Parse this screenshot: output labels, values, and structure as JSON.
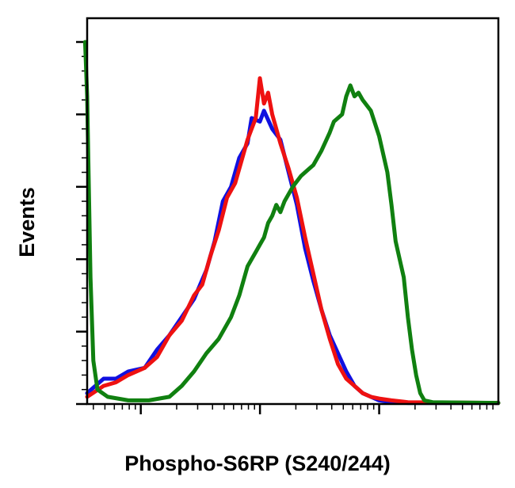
{
  "chart_data": {
    "type": "line",
    "title": "",
    "xlabel": "Phospho-S6RP (S240/244)",
    "ylabel": "Events",
    "xscale": "log",
    "xlim": [
      0,
      100
    ],
    "ylim": [
      0,
      100
    ],
    "grid": false,
    "legend": "none",
    "series": [
      {
        "color": "#1010e0",
        "points": [
          [
            0,
            3
          ],
          [
            4,
            7
          ],
          [
            7,
            7
          ],
          [
            10,
            9
          ],
          [
            14,
            10
          ],
          [
            17,
            15
          ],
          [
            20,
            19
          ],
          [
            23,
            24
          ],
          [
            26,
            29
          ],
          [
            29,
            37
          ],
          [
            31,
            45
          ],
          [
            33,
            56
          ],
          [
            35,
            60
          ],
          [
            37,
            68
          ],
          [
            39,
            72
          ],
          [
            40,
            79
          ],
          [
            42,
            78
          ],
          [
            43,
            81
          ],
          [
            45,
            76
          ],
          [
            47,
            73
          ],
          [
            49,
            64
          ],
          [
            51,
            55
          ],
          [
            53,
            43
          ],
          [
            55,
            34
          ],
          [
            57,
            26
          ],
          [
            59,
            19
          ],
          [
            61,
            14
          ],
          [
            63,
            9
          ],
          [
            65,
            5
          ],
          [
            67,
            3
          ],
          [
            69,
            2
          ],
          [
            71,
            1
          ],
          [
            74,
            0.5
          ],
          [
            78,
            0.3
          ],
          [
            100,
            0.3
          ]
        ]
      },
      {
        "color": "#ee1111",
        "points": [
          [
            0,
            2
          ],
          [
            4,
            5
          ],
          [
            7,
            6
          ],
          [
            10,
            8
          ],
          [
            14,
            10
          ],
          [
            17,
            13
          ],
          [
            20,
            19
          ],
          [
            23,
            23
          ],
          [
            26,
            30
          ],
          [
            28,
            33
          ],
          [
            30,
            41
          ],
          [
            32,
            48
          ],
          [
            34,
            57
          ],
          [
            36,
            61
          ],
          [
            38,
            69
          ],
          [
            39,
            73
          ],
          [
            41,
            79
          ],
          [
            42,
            90
          ],
          [
            43,
            83
          ],
          [
            44,
            86
          ],
          [
            45,
            80
          ],
          [
            47,
            72
          ],
          [
            49,
            65
          ],
          [
            51,
            57
          ],
          [
            53,
            46
          ],
          [
            55,
            36
          ],
          [
            57,
            26
          ],
          [
            59,
            18
          ],
          [
            61,
            11
          ],
          [
            63,
            7
          ],
          [
            65,
            5
          ],
          [
            67,
            3
          ],
          [
            69,
            2
          ],
          [
            71,
            1.5
          ],
          [
            74,
            1
          ],
          [
            78,
            0.5
          ],
          [
            100,
            0.3
          ]
        ]
      },
      {
        "color": "#108010",
        "points": [
          [
            -0.5,
            100
          ],
          [
            0,
            85
          ],
          [
            0.8,
            35
          ],
          [
            1.5,
            12
          ],
          [
            2.5,
            4
          ],
          [
            5,
            2
          ],
          [
            10,
            1
          ],
          [
            15,
            1
          ],
          [
            20,
            2
          ],
          [
            23,
            5
          ],
          [
            26,
            9
          ],
          [
            29,
            14
          ],
          [
            32,
            18
          ],
          [
            35,
            24
          ],
          [
            37,
            30
          ],
          [
            38,
            34
          ],
          [
            39,
            38
          ],
          [
            41,
            42
          ],
          [
            42,
            44
          ],
          [
            43,
            46
          ],
          [
            44,
            50
          ],
          [
            45,
            52
          ],
          [
            46,
            55
          ],
          [
            47,
            53
          ],
          [
            48,
            56
          ],
          [
            50,
            60
          ],
          [
            52,
            63
          ],
          [
            54,
            65
          ],
          [
            55,
            66
          ],
          [
            57,
            70
          ],
          [
            59,
            75
          ],
          [
            60,
            78
          ],
          [
            62,
            80
          ],
          [
            63,
            85
          ],
          [
            64,
            88
          ],
          [
            65,
            85
          ],
          [
            66,
            86
          ],
          [
            67,
            84
          ],
          [
            69,
            81
          ],
          [
            71,
            74
          ],
          [
            73,
            64
          ],
          [
            74,
            55
          ],
          [
            75,
            45
          ],
          [
            77,
            35
          ],
          [
            78,
            24
          ],
          [
            79,
            15
          ],
          [
            80,
            8
          ],
          [
            81,
            3
          ],
          [
            82,
            1
          ],
          [
            84,
            0.5
          ],
          [
            100,
            0.3
          ]
        ]
      }
    ]
  }
}
